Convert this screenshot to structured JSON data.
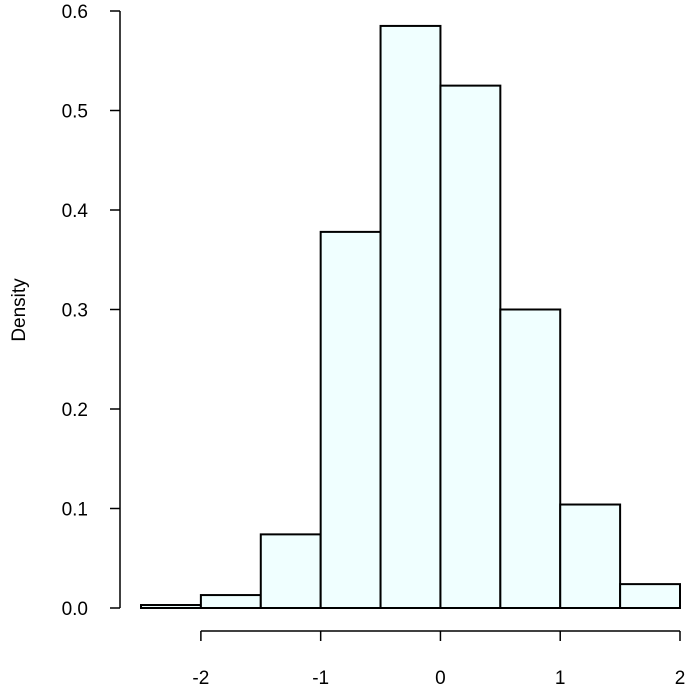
{
  "chart_data": {
    "type": "bar",
    "title": "",
    "xlabel": "",
    "ylabel": "Density",
    "bin_edges": [
      -2.5,
      -2.0,
      -1.5,
      -1.0,
      -0.5,
      0.0,
      0.5,
      1.0,
      1.5,
      2.0
    ],
    "values": [
      0.003,
      0.013,
      0.074,
      0.378,
      0.585,
      0.525,
      0.3,
      0.104,
      0.024
    ],
    "xlim": [
      -2.5,
      2.0
    ],
    "ylim": [
      0,
      0.6
    ],
    "x_ticks": [
      -2,
      -1,
      0,
      1,
      2
    ],
    "y_ticks": [
      0.0,
      0.1,
      0.2,
      0.3,
      0.4,
      0.5,
      0.6
    ],
    "x_tick_labels": [
      "-2",
      "-1",
      "0",
      "1",
      "2"
    ],
    "y_tick_labels": [
      "0.0",
      "0.1",
      "0.2",
      "0.3",
      "0.4",
      "0.5",
      "0.6"
    ],
    "bar_color": "#f0ffff",
    "edge_color": "#000000",
    "grid": false,
    "legend": "none"
  }
}
